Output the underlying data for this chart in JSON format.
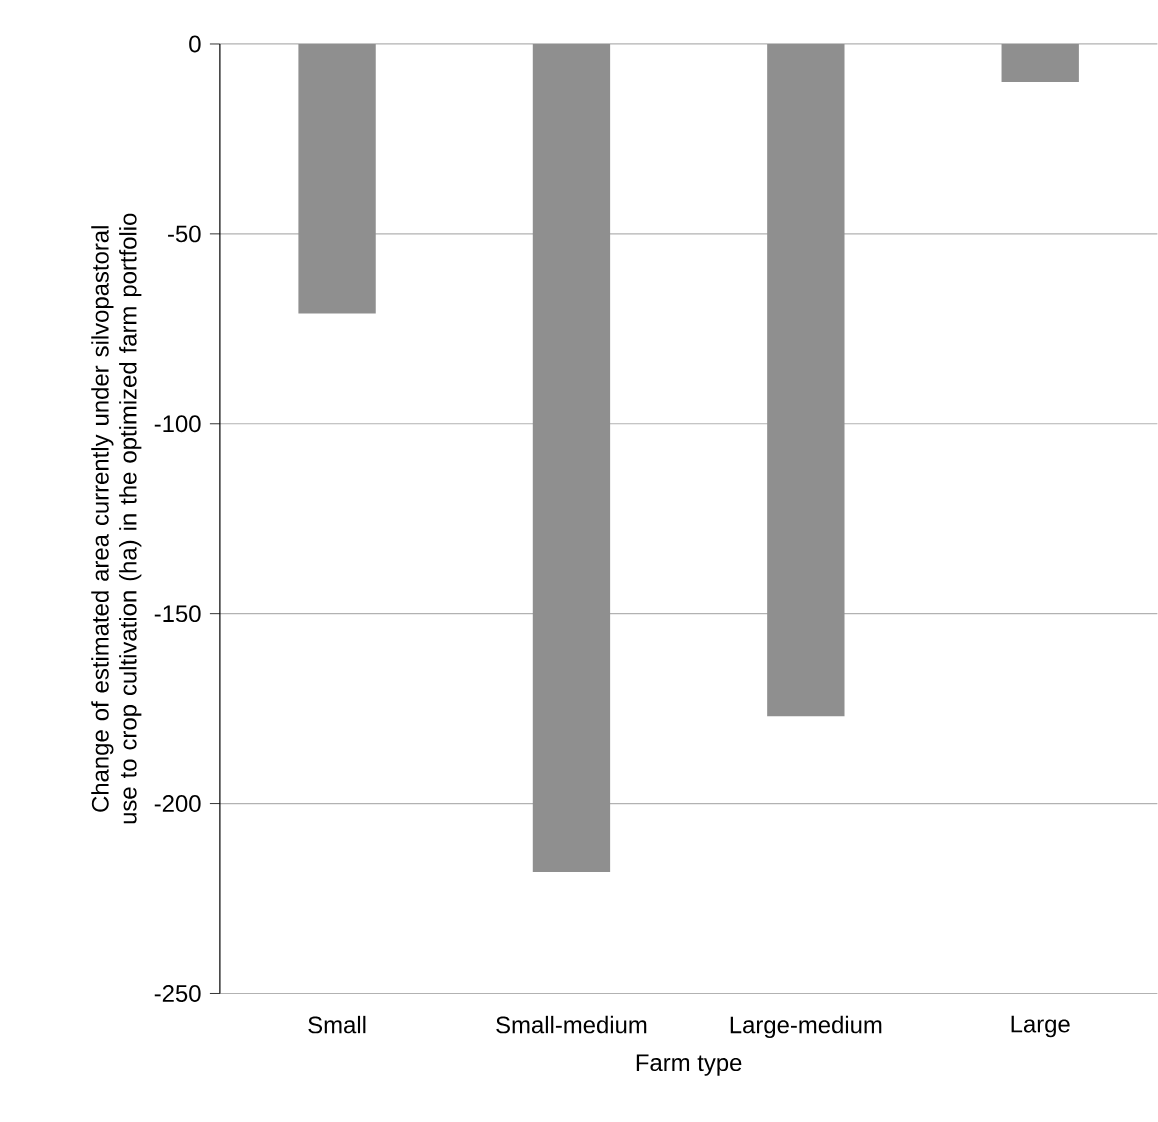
{
  "chart_data": {
    "type": "bar",
    "xlabel": "Farm type",
    "ylabel": "Change of estimated area currently under silvopastoral use to crop cultivation (ha) in the optimized farm portfolio",
    "categories": [
      "Small",
      "Small-medium",
      "Large-medium",
      "Large"
    ],
    "values": [
      -71,
      -218,
      -177,
      -10
    ],
    "color": "#8f8f8f",
    "ylim": [
      -250,
      0
    ],
    "yticks": [
      0,
      -50,
      -100,
      -150,
      -200,
      -250
    ],
    "grid": "y"
  }
}
